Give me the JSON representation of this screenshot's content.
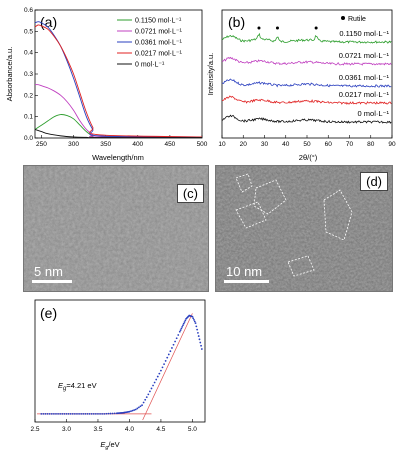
{
  "panels": {
    "a": {
      "label": "(a)",
      "xlabel": "Wavelength/nm",
      "ylabel": "Absorbance/a.u.",
      "legend": [
        "0.1150 mol·L⁻¹",
        "0.0721 mol·L⁻¹",
        "0.0361 mol·L⁻¹",
        "0.0217 mol·L⁻¹",
        "0 mol·L⁻¹"
      ],
      "xticks": [
        "250",
        "300",
        "350",
        "400",
        "450",
        "500"
      ],
      "yticks": [
        "0.0",
        "0.1",
        "0.2",
        "0.3",
        "0.4",
        "0.5",
        "0.6"
      ]
    },
    "b": {
      "label": "(b)",
      "xlabel": "2θ/(°)",
      "ylabel": "Intensity/a.u.",
      "legend": "Rutile",
      "series_labels": [
        "0.1150 mol·L⁻¹",
        "0.0721 mol·L⁻¹",
        "0.0361 mol·L⁻¹",
        "0.0217 mol·L⁻¹",
        "0 mol·L⁻¹"
      ],
      "xticks": [
        "10",
        "20",
        "30",
        "40",
        "50",
        "60",
        "70",
        "80",
        "90"
      ]
    },
    "c": {
      "label": "(c)",
      "scale": "5 nm"
    },
    "d": {
      "label": "(d)",
      "scale": "10 nm"
    },
    "e": {
      "label": "(e)",
      "xlabel": "E",
      "xlabel_sub": "g",
      "xlabel_unit": "/eV",
      "annotation_e": "E",
      "annotation_sub": "g",
      "annotation_val": "=4.21 eV",
      "xticks": [
        "2.5",
        "3.0",
        "3.5",
        "4.0",
        "4.5",
        "5.0"
      ]
    }
  },
  "colors": {
    "green": "#2e9e2e",
    "magenta": "#c040c0",
    "blue": "#2a3fbf",
    "red": "#e02020",
    "black": "#111111",
    "fit": "#e05050"
  },
  "chart_data": [
    {
      "panel": "a",
      "type": "line",
      "xlabel": "Wavelength/nm",
      "ylabel": "Absorbance/a.u.",
      "xlim": [
        240,
        500
      ],
      "ylim": [
        0.0,
        0.6
      ],
      "series": [
        {
          "name": "0.1150 mol·L⁻¹",
          "x": [
            240,
            250,
            260,
            270,
            280,
            290,
            300,
            310,
            320,
            330,
            340,
            500
          ],
          "y": [
            0.04,
            0.06,
            0.08,
            0.1,
            0.11,
            0.105,
            0.09,
            0.06,
            0.03,
            0.01,
            0.005,
            0.005
          ]
        },
        {
          "name": "0.0721 mol·L⁻¹",
          "x": [
            240,
            245,
            250,
            260,
            270,
            280,
            290,
            300,
            310,
            320,
            330,
            340,
            500
          ],
          "y": [
            0.25,
            0.25,
            0.245,
            0.235,
            0.22,
            0.2,
            0.17,
            0.13,
            0.08,
            0.04,
            0.015,
            0.005,
            0.005
          ]
        },
        {
          "name": "0.0361 mol·L⁻¹",
          "x": [
            240,
            245,
            250,
            260,
            270,
            280,
            290,
            300,
            310,
            320,
            330,
            340,
            500
          ],
          "y": [
            0.54,
            0.545,
            0.54,
            0.52,
            0.48,
            0.43,
            0.36,
            0.28,
            0.19,
            0.1,
            0.04,
            0.01,
            0.005
          ]
        },
        {
          "name": "0.0217 mol·L⁻¹",
          "x": [
            240,
            245,
            250,
            260,
            270,
            280,
            290,
            300,
            310,
            320,
            330,
            340,
            500
          ],
          "y": [
            0.52,
            0.53,
            0.525,
            0.51,
            0.475,
            0.43,
            0.37,
            0.3,
            0.21,
            0.12,
            0.05,
            0.015,
            0.005
          ]
        },
        {
          "name": "0 mol·L⁻¹",
          "x": [
            240,
            250,
            260,
            280,
            300,
            320,
            340,
            500
          ],
          "y": [
            0.04,
            0.03,
            0.02,
            0.01,
            0.005,
            0.003,
            0.002,
            0.002
          ]
        }
      ]
    },
    {
      "panel": "b",
      "type": "line",
      "xlabel": "2θ/(°)",
      "ylabel": "Intensity/a.u.",
      "xlim": [
        10,
        90
      ],
      "series": [
        {
          "name": "0.1150 mol·L⁻¹",
          "offset": 4,
          "peaks": [
            27.4,
            36.1,
            54.3
          ]
        },
        {
          "name": "0.0721 mol·L⁻¹",
          "offset": 3
        },
        {
          "name": "0.0361 mol·L⁻¹",
          "offset": 2
        },
        {
          "name": "0.0217 mol·L⁻¹",
          "offset": 1
        },
        {
          "name": "0 mol·L⁻¹",
          "offset": 0
        }
      ],
      "rutile_markers_x": [
        27.4,
        36.1,
        54.3
      ]
    },
    {
      "panel": "e",
      "type": "scatter",
      "xlabel": "Eg/eV",
      "xlim": [
        2.5,
        5.2
      ],
      "x": [
        2.6,
        2.8,
        3.0,
        3.2,
        3.4,
        3.6,
        3.8,
        3.9,
        4.0,
        4.1,
        4.2,
        4.3,
        4.4,
        4.5,
        4.6,
        4.7,
        4.8,
        4.85,
        4.9,
        4.95,
        5.0,
        5.05,
        5.1,
        5.15
      ],
      "y": [
        0.02,
        0.02,
        0.02,
        0.02,
        0.02,
        0.02,
        0.025,
        0.03,
        0.04,
        0.06,
        0.1,
        0.2,
        0.31,
        0.42,
        0.54,
        0.66,
        0.78,
        0.84,
        0.9,
        0.93,
        0.92,
        0.86,
        0.74,
        0.62
      ],
      "fit_line": {
        "x": [
          4.21,
          5.0
        ],
        "y": [
          0.0,
          0.95
        ]
      },
      "band_gap": 4.21
    }
  ]
}
